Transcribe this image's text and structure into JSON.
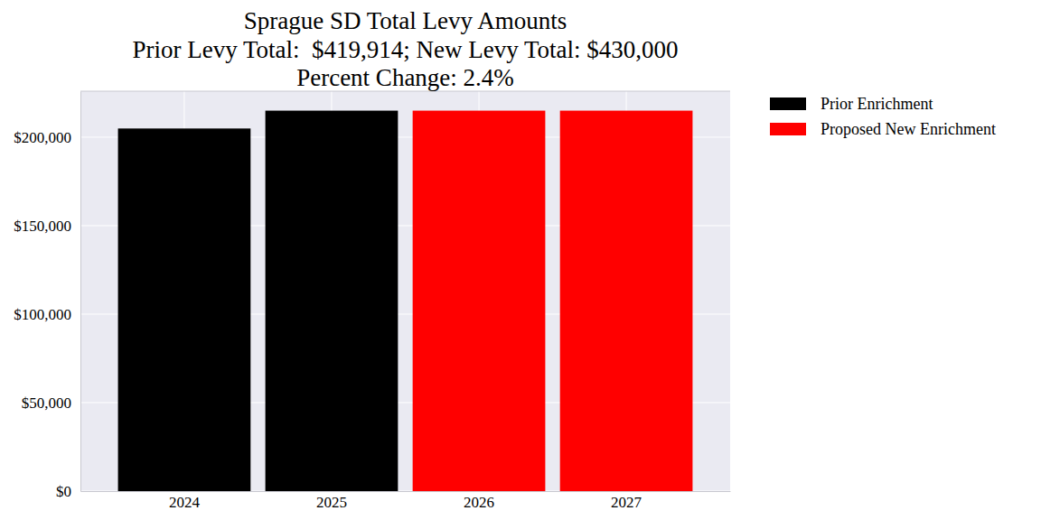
{
  "chart_data": {
    "type": "bar",
    "title": "Sprague SD Total Levy Amounts\nPrior Levy Total:  $419,914; New Levy Total: $430,000\nPercent Change: 2.4%",
    "categories": [
      "2024",
      "2025",
      "2026",
      "2027"
    ],
    "series": [
      {
        "name": "Prior Enrichment",
        "color": "#000000",
        "values": [
          204914,
          215000,
          null,
          null
        ]
      },
      {
        "name": "Proposed New Enrichment",
        "color": "#ff0000",
        "values": [
          null,
          null,
          215000,
          215000
        ]
      }
    ],
    "ylim": [
      0,
      226000
    ],
    "yticks": [
      {
        "value": 0,
        "label": "$0"
      },
      {
        "value": 50000,
        "label": "$50,000"
      },
      {
        "value": 100000,
        "label": "$100,000"
      },
      {
        "value": 150000,
        "label": "$150,000"
      },
      {
        "value": 200000,
        "label": "$200,000"
      }
    ],
    "grid": true,
    "legend": "outside-upper-right"
  }
}
